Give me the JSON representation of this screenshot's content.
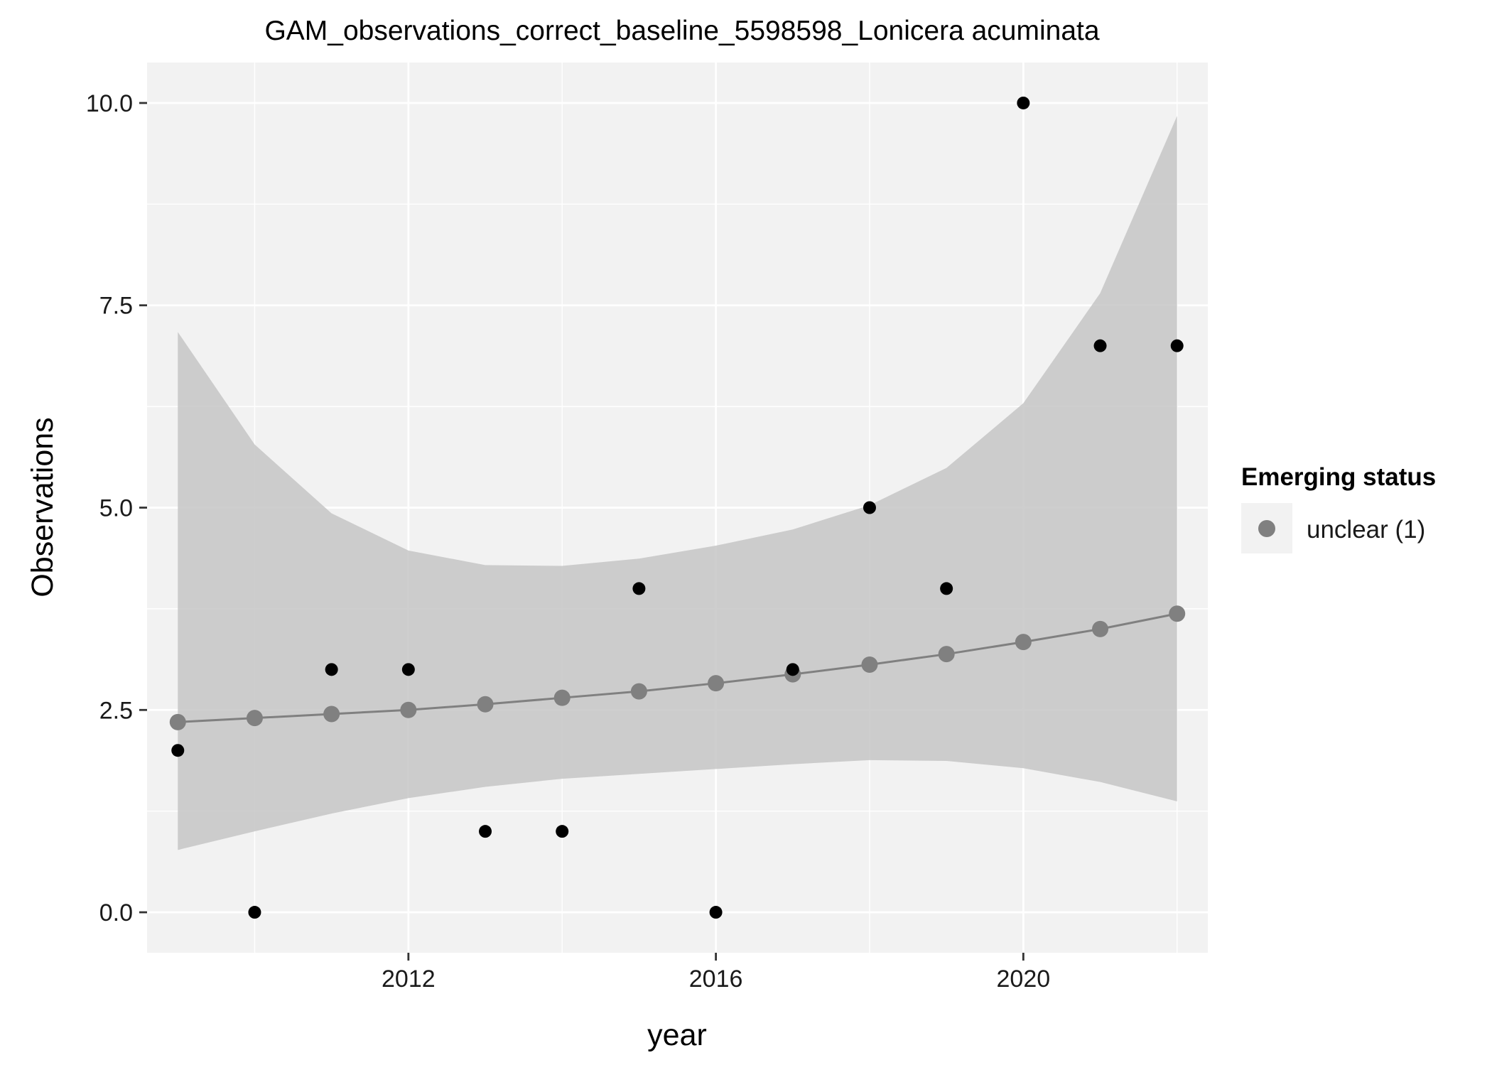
{
  "chart_data": {
    "type": "scatter",
    "title": "GAM_observations_correct_baseline_5598598_Lonicera acuminata",
    "xlabel": "year",
    "ylabel": "Observations",
    "xlim": [
      2008.6,
      2022.4
    ],
    "ylim": [
      -0.5,
      10.5
    ],
    "x_ticks": [
      2012,
      2016,
      2020
    ],
    "y_ticks": [
      0.0,
      2.5,
      5.0,
      7.5,
      10.0
    ],
    "y_tick_labels": [
      "0.0",
      "2.5",
      "5.0",
      "7.5",
      "10.0"
    ],
    "grid": true,
    "legend_position": "right",
    "legend": {
      "title": "Emerging status",
      "entries": [
        {
          "label": "unclear (1)",
          "color": "#808080"
        }
      ]
    },
    "colors": {
      "panel_background": "#f2f2f2",
      "grid": "#ffffff",
      "ribbon": "#c6c6c6",
      "fit": "#808080",
      "observed": "#000000"
    },
    "series": [
      {
        "kind": "observed",
        "x": [
          2009,
          2010,
          2011,
          2012,
          2013,
          2014,
          2015,
          2016,
          2017,
          2018,
          2019,
          2020,
          2021,
          2022
        ],
        "y": [
          2,
          0,
          3,
          3,
          1,
          1,
          4,
          0,
          3,
          5,
          4,
          10,
          7,
          7
        ]
      },
      {
        "kind": "fitted",
        "name": "unclear (1)",
        "x": [
          2009,
          2010,
          2011,
          2012,
          2013,
          2014,
          2015,
          2016,
          2017,
          2018,
          2019,
          2020,
          2021,
          2022
        ],
        "y": [
          2.35,
          2.4,
          2.45,
          2.5,
          2.57,
          2.65,
          2.73,
          2.83,
          2.94,
          3.06,
          3.19,
          3.34,
          3.5,
          3.69
        ],
        "lower": [
          0.77,
          1.0,
          1.22,
          1.41,
          1.55,
          1.65,
          1.71,
          1.77,
          1.83,
          1.88,
          1.87,
          1.78,
          1.61,
          1.37
        ],
        "upper": [
          7.17,
          5.78,
          4.93,
          4.47,
          4.29,
          4.28,
          4.37,
          4.53,
          4.73,
          5.03,
          5.49,
          6.29,
          7.65,
          9.84
        ]
      }
    ]
  }
}
